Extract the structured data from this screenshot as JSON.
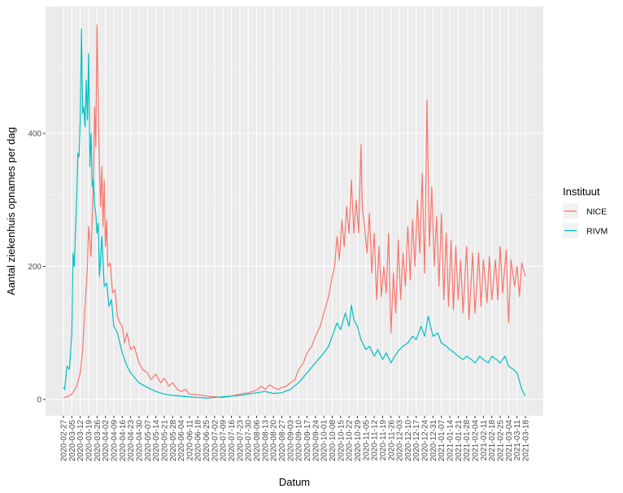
{
  "chart_data": {
    "type": "line",
    "xlabel": "Datum",
    "ylabel": "Aantal ziekenhuis opnames per dag",
    "ylim": [
      -5,
      570
    ],
    "y_ticks": [
      0,
      200,
      400
    ],
    "grid": true,
    "legend": {
      "title": "Instituut",
      "position": "right"
    },
    "x_ticks": [
      "2020-02-27",
      "2020-03-05",
      "2020-03-12",
      "2020-03-19",
      "2020-03-26",
      "2020-04-02",
      "2020-04-09",
      "2020-04-16",
      "2020-04-23",
      "2020-04-30",
      "2020-05-07",
      "2020-05-14",
      "2020-05-21",
      "2020-05-28",
      "2020-06-04",
      "2020-06-11",
      "2020-06-18",
      "2020-06-25",
      "2020-07-02",
      "2020-07-09",
      "2020-07-16",
      "2020-07-23",
      "2020-07-30",
      "2020-08-06",
      "2020-08-13",
      "2020-08-20",
      "2020-08-27",
      "2020-09-03",
      "2020-09-10",
      "2020-09-17",
      "2020-09-24",
      "2020-10-01",
      "2020-10-08",
      "2020-10-15",
      "2020-10-22",
      "2020-10-29",
      "2020-11-05",
      "2020-11-12",
      "2020-11-19",
      "2020-11-26",
      "2020-12-03",
      "2020-12-10",
      "2020-12-17",
      "2020-12-24",
      "2020-12-31",
      "2021-01-07",
      "2021-01-14",
      "2021-01-21",
      "2021-01-28",
      "2021-02-04",
      "2021-02-11",
      "2021-02-18",
      "2021-02-25",
      "2021-03-04",
      "2021-03-11",
      "2021-03-18"
    ],
    "series": [
      {
        "name": "NICE",
        "color": "#F8766D",
        "points": [
          [
            "2020-02-27",
            3
          ],
          [
            "2020-03-01",
            4
          ],
          [
            "2020-03-05",
            8
          ],
          [
            "2020-03-09",
            20
          ],
          [
            "2020-03-12",
            40
          ],
          [
            "2020-03-14",
            75
          ],
          [
            "2020-03-16",
            140
          ],
          [
            "2020-03-18",
            200
          ],
          [
            "2020-03-19",
            260
          ],
          [
            "2020-03-21",
            215
          ],
          [
            "2020-03-23",
            330
          ],
          [
            "2020-03-24",
            440
          ],
          [
            "2020-03-25",
            380
          ],
          [
            "2020-03-26",
            563
          ],
          [
            "2020-03-27",
            440
          ],
          [
            "2020-03-28",
            350
          ],
          [
            "2020-03-29",
            290
          ],
          [
            "2020-03-30",
            350
          ],
          [
            "2020-03-31",
            260
          ],
          [
            "2020-04-01",
            330
          ],
          [
            "2020-04-02",
            230
          ],
          [
            "2020-04-03",
            270
          ],
          [
            "2020-04-04",
            200
          ],
          [
            "2020-04-06",
            205
          ],
          [
            "2020-04-08",
            160
          ],
          [
            "2020-04-10",
            165
          ],
          [
            "2020-04-12",
            125
          ],
          [
            "2020-04-14",
            115
          ],
          [
            "2020-04-16",
            110
          ],
          [
            "2020-04-18",
            85
          ],
          [
            "2020-04-20",
            100
          ],
          [
            "2020-04-23",
            75
          ],
          [
            "2020-04-26",
            80
          ],
          [
            "2020-04-30",
            55
          ],
          [
            "2020-05-03",
            45
          ],
          [
            "2020-05-07",
            40
          ],
          [
            "2020-05-10",
            30
          ],
          [
            "2020-05-14",
            38
          ],
          [
            "2020-05-18",
            25
          ],
          [
            "2020-05-21",
            32
          ],
          [
            "2020-05-25",
            20
          ],
          [
            "2020-05-28",
            25
          ],
          [
            "2020-06-01",
            15
          ],
          [
            "2020-06-04",
            12
          ],
          [
            "2020-06-08",
            15
          ],
          [
            "2020-06-11",
            8
          ],
          [
            "2020-06-18",
            7
          ],
          [
            "2020-06-25",
            5
          ],
          [
            "2020-07-02",
            4
          ],
          [
            "2020-07-09",
            3
          ],
          [
            "2020-07-16",
            5
          ],
          [
            "2020-07-23",
            8
          ],
          [
            "2020-07-30",
            10
          ],
          [
            "2020-08-06",
            14
          ],
          [
            "2020-08-10",
            20
          ],
          [
            "2020-08-13",
            15
          ],
          [
            "2020-08-17",
            22
          ],
          [
            "2020-08-20",
            18
          ],
          [
            "2020-08-24",
            15
          ],
          [
            "2020-08-27",
            18
          ],
          [
            "2020-08-31",
            20
          ],
          [
            "2020-09-03",
            25
          ],
          [
            "2020-09-07",
            30
          ],
          [
            "2020-09-10",
            45
          ],
          [
            "2020-09-14",
            55
          ],
          [
            "2020-09-17",
            70
          ],
          [
            "2020-09-21",
            80
          ],
          [
            "2020-09-24",
            95
          ],
          [
            "2020-09-28",
            110
          ],
          [
            "2020-10-01",
            130
          ],
          [
            "2020-10-05",
            155
          ],
          [
            "2020-10-08",
            185
          ],
          [
            "2020-10-10",
            200
          ],
          [
            "2020-10-12",
            245
          ],
          [
            "2020-10-14",
            210
          ],
          [
            "2020-10-16",
            270
          ],
          [
            "2020-10-18",
            230
          ],
          [
            "2020-10-20",
            290
          ],
          [
            "2020-10-22",
            250
          ],
          [
            "2020-10-24",
            330
          ],
          [
            "2020-10-26",
            250
          ],
          [
            "2020-10-28",
            300
          ],
          [
            "2020-10-30",
            250
          ],
          [
            "2020-11-01",
            383
          ],
          [
            "2020-11-02",
            290
          ],
          [
            "2020-11-04",
            260
          ],
          [
            "2020-11-06",
            220
          ],
          [
            "2020-11-08",
            280
          ],
          [
            "2020-11-10",
            190
          ],
          [
            "2020-11-12",
            250
          ],
          [
            "2020-11-14",
            150
          ],
          [
            "2020-11-16",
            230
          ],
          [
            "2020-11-18",
            155
          ],
          [
            "2020-11-20",
            200
          ],
          [
            "2020-11-22",
            160
          ],
          [
            "2020-11-24",
            250
          ],
          [
            "2020-11-26",
            100
          ],
          [
            "2020-11-28",
            190
          ],
          [
            "2020-11-30",
            130
          ],
          [
            "2020-12-02",
            240
          ],
          [
            "2020-12-04",
            150
          ],
          [
            "2020-12-06",
            220
          ],
          [
            "2020-12-08",
            170
          ],
          [
            "2020-12-10",
            260
          ],
          [
            "2020-12-12",
            180
          ],
          [
            "2020-12-14",
            270
          ],
          [
            "2020-12-16",
            200
          ],
          [
            "2020-12-18",
            300
          ],
          [
            "2020-12-20",
            220
          ],
          [
            "2020-12-22",
            340
          ],
          [
            "2020-12-24",
            190
          ],
          [
            "2020-12-26",
            450
          ],
          [
            "2020-12-28",
            230
          ],
          [
            "2020-12-30",
            320
          ],
          [
            "2021-01-01",
            200
          ],
          [
            "2021-01-03",
            275
          ],
          [
            "2021-01-05",
            170
          ],
          [
            "2021-01-07",
            280
          ],
          [
            "2021-01-09",
            150
          ],
          [
            "2021-01-11",
            250
          ],
          [
            "2021-01-13",
            140
          ],
          [
            "2021-01-15",
            240
          ],
          [
            "2021-01-17",
            135
          ],
          [
            "2021-01-19",
            230
          ],
          [
            "2021-01-21",
            150
          ],
          [
            "2021-01-23",
            210
          ],
          [
            "2021-01-25",
            130
          ],
          [
            "2021-01-28",
            230
          ],
          [
            "2021-01-30",
            120
          ],
          [
            "2021-02-02",
            220
          ],
          [
            "2021-02-04",
            130
          ],
          [
            "2021-02-07",
            220
          ],
          [
            "2021-02-09",
            140
          ],
          [
            "2021-02-11",
            210
          ],
          [
            "2021-02-14",
            145
          ],
          [
            "2021-02-16",
            215
          ],
          [
            "2021-02-18",
            150
          ],
          [
            "2021-02-21",
            210
          ],
          [
            "2021-02-23",
            150
          ],
          [
            "2021-02-25",
            230
          ],
          [
            "2021-02-27",
            160
          ],
          [
            "2021-03-02",
            225
          ],
          [
            "2021-03-04",
            115
          ],
          [
            "2021-03-06",
            210
          ],
          [
            "2021-03-09",
            170
          ],
          [
            "2021-03-11",
            200
          ],
          [
            "2021-03-13",
            155
          ],
          [
            "2021-03-15",
            205
          ],
          [
            "2021-03-18",
            185
          ]
        ]
      },
      {
        "name": "RIVM",
        "color": "#00BFC4",
        "points": [
          [
            "2020-02-27",
            18
          ],
          [
            "2020-02-28",
            15
          ],
          [
            "2020-03-01",
            50
          ],
          [
            "2020-03-03",
            45
          ],
          [
            "2020-03-05",
            100
          ],
          [
            "2020-03-06",
            220
          ],
          [
            "2020-03-07",
            200
          ],
          [
            "2020-03-09",
            300
          ],
          [
            "2020-03-10",
            370
          ],
          [
            "2020-03-11",
            365
          ],
          [
            "2020-03-12",
            420
          ],
          [
            "2020-03-13",
            557
          ],
          [
            "2020-03-14",
            430
          ],
          [
            "2020-03-15",
            440
          ],
          [
            "2020-03-16",
            410
          ],
          [
            "2020-03-17",
            480
          ],
          [
            "2020-03-18",
            420
          ],
          [
            "2020-03-19",
            520
          ],
          [
            "2020-03-20",
            350
          ],
          [
            "2020-03-21",
            400
          ],
          [
            "2020-03-22",
            320
          ],
          [
            "2020-03-23",
            330
          ],
          [
            "2020-03-24",
            290
          ],
          [
            "2020-03-25",
            280
          ],
          [
            "2020-03-26",
            250
          ],
          [
            "2020-03-27",
            265
          ],
          [
            "2020-03-28",
            185
          ],
          [
            "2020-03-30",
            245
          ],
          [
            "2020-04-01",
            170
          ],
          [
            "2020-04-03",
            175
          ],
          [
            "2020-04-05",
            140
          ],
          [
            "2020-04-07",
            150
          ],
          [
            "2020-04-09",
            110
          ],
          [
            "2020-04-12",
            100
          ],
          [
            "2020-04-16",
            70
          ],
          [
            "2020-04-20",
            50
          ],
          [
            "2020-04-23",
            40
          ],
          [
            "2020-04-30",
            25
          ],
          [
            "2020-05-07",
            18
          ],
          [
            "2020-05-14",
            12
          ],
          [
            "2020-05-21",
            8
          ],
          [
            "2020-05-28",
            6
          ],
          [
            "2020-06-04",
            5
          ],
          [
            "2020-06-11",
            4
          ],
          [
            "2020-06-18",
            3
          ],
          [
            "2020-06-25",
            2
          ],
          [
            "2020-07-02",
            3
          ],
          [
            "2020-07-09",
            4
          ],
          [
            "2020-07-16",
            5
          ],
          [
            "2020-07-23",
            6
          ],
          [
            "2020-07-30",
            8
          ],
          [
            "2020-08-06",
            10
          ],
          [
            "2020-08-13",
            12
          ],
          [
            "2020-08-20",
            9
          ],
          [
            "2020-08-27",
            10
          ],
          [
            "2020-09-03",
            15
          ],
          [
            "2020-09-10",
            25
          ],
          [
            "2020-09-17",
            40
          ],
          [
            "2020-09-24",
            55
          ],
          [
            "2020-10-01",
            70
          ],
          [
            "2020-10-05",
            80
          ],
          [
            "2020-10-08",
            95
          ],
          [
            "2020-10-12",
            115
          ],
          [
            "2020-10-15",
            105
          ],
          [
            "2020-10-19",
            130
          ],
          [
            "2020-10-22",
            110
          ],
          [
            "2020-10-24",
            142
          ],
          [
            "2020-10-26",
            120
          ],
          [
            "2020-10-29",
            110
          ],
          [
            "2020-11-01",
            90
          ],
          [
            "2020-11-05",
            75
          ],
          [
            "2020-11-08",
            80
          ],
          [
            "2020-11-12",
            65
          ],
          [
            "2020-11-15",
            75
          ],
          [
            "2020-11-19",
            60
          ],
          [
            "2020-11-22",
            70
          ],
          [
            "2020-11-26",
            55
          ],
          [
            "2020-11-29",
            65
          ],
          [
            "2020-12-03",
            75
          ],
          [
            "2020-12-06",
            80
          ],
          [
            "2020-12-10",
            85
          ],
          [
            "2020-12-14",
            95
          ],
          [
            "2020-12-17",
            90
          ],
          [
            "2020-12-21",
            110
          ],
          [
            "2020-12-24",
            95
          ],
          [
            "2020-12-27",
            125
          ],
          [
            "2020-12-31",
            95
          ],
          [
            "2021-01-04",
            100
          ],
          [
            "2021-01-07",
            85
          ],
          [
            "2021-01-11",
            80
          ],
          [
            "2021-01-14",
            75
          ],
          [
            "2021-01-18",
            70
          ],
          [
            "2021-01-21",
            65
          ],
          [
            "2021-01-25",
            60
          ],
          [
            "2021-01-28",
            65
          ],
          [
            "2021-02-01",
            60
          ],
          [
            "2021-02-04",
            55
          ],
          [
            "2021-02-08",
            65
          ],
          [
            "2021-02-11",
            60
          ],
          [
            "2021-02-15",
            55
          ],
          [
            "2021-02-18",
            65
          ],
          [
            "2021-02-22",
            60
          ],
          [
            "2021-02-25",
            55
          ],
          [
            "2021-03-01",
            65
          ],
          [
            "2021-03-04",
            50
          ],
          [
            "2021-03-08",
            45
          ],
          [
            "2021-03-11",
            40
          ],
          [
            "2021-03-15",
            15
          ],
          [
            "2021-03-18",
            5
          ]
        ]
      }
    ]
  }
}
